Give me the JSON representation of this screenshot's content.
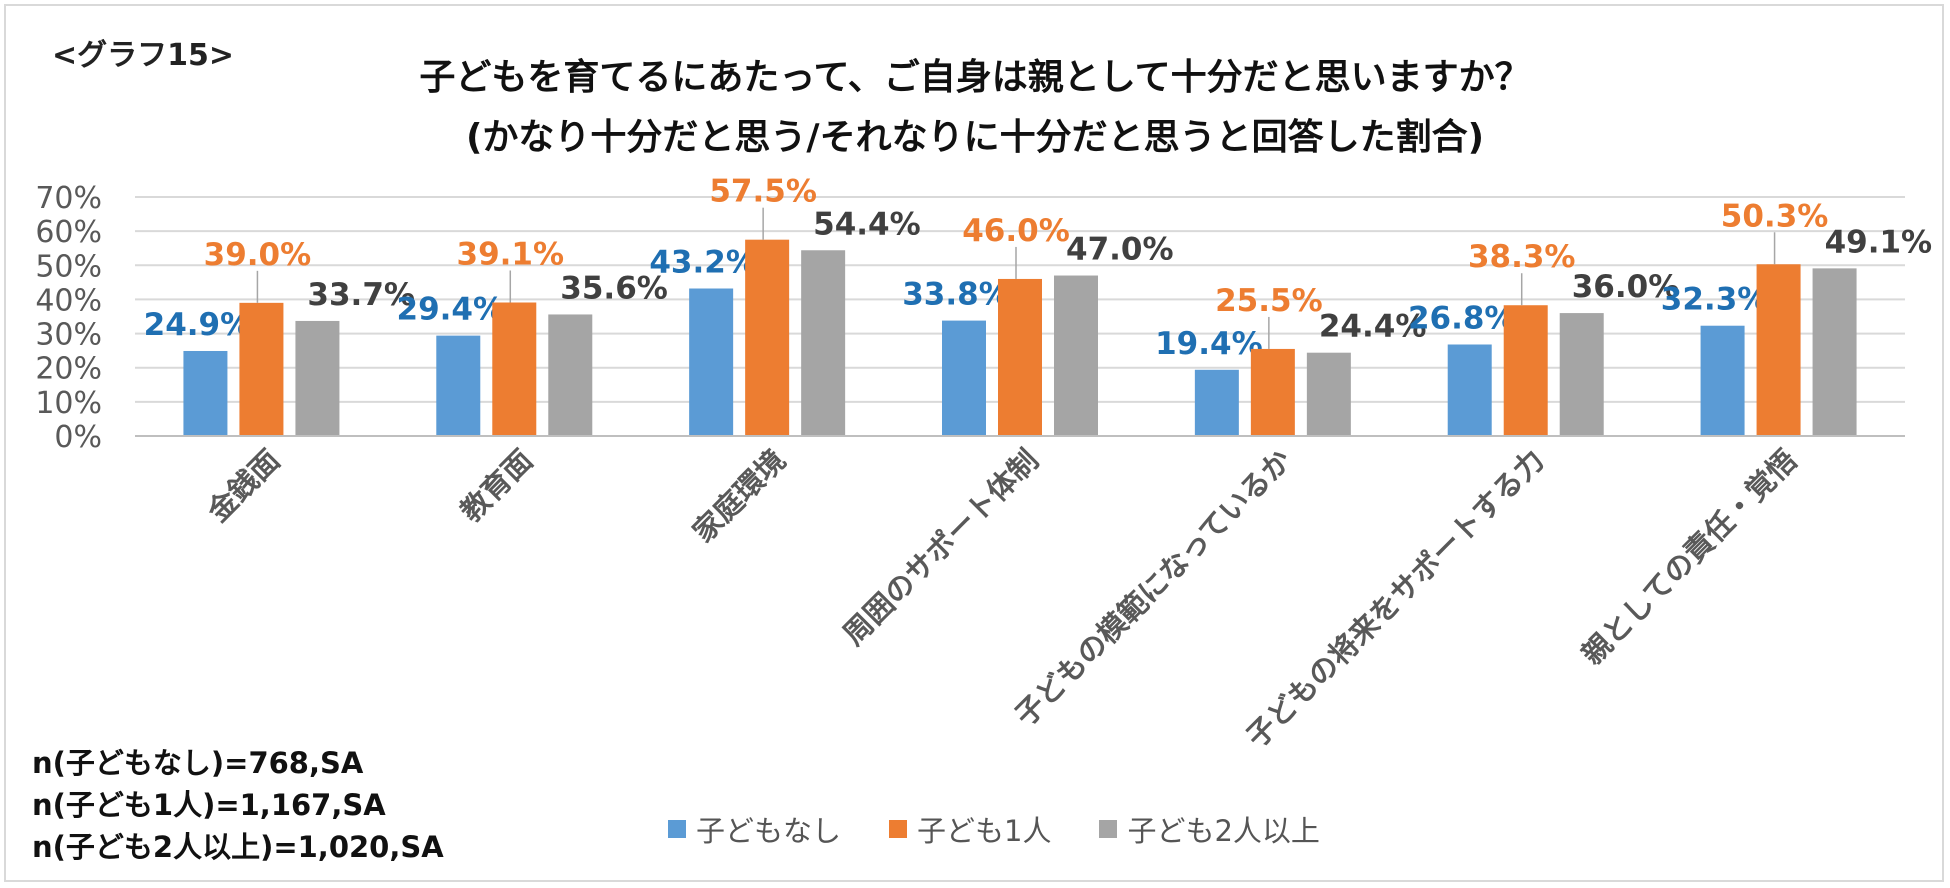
{
  "graph_tag": "<グラフ15>",
  "title_line1": "子どもを育てるにあたって、ご自身は親として十分だと思いますか？",
  "title_line2": "(かなり十分だと思う/それなりに十分だと思うと回答した割合)",
  "notes": [
    "n(子どもなし)=768,SA",
    "n(子ども1人)=1,167,SA",
    "n(子ども2人以上)=1,020,SA"
  ],
  "chart_data": {
    "type": "bar",
    "categories": [
      "金銭面",
      "教育面",
      "家庭環境",
      "周囲のサポート体制",
      "子どもの模範になっているか",
      "子どもの将来をサポートする力",
      "親としての責任・覚悟"
    ],
    "series": [
      {
        "name": "子どもなし",
        "color": "#5b9bd5",
        "label_color": "#1f6fb2",
        "values": [
          24.9,
          29.4,
          43.2,
          33.8,
          19.4,
          26.8,
          32.3
        ]
      },
      {
        "name": "子ども1人",
        "color": "#ed7d31",
        "label_color": "#ed7d31",
        "values": [
          39.0,
          39.1,
          57.5,
          46.0,
          25.5,
          38.3,
          50.3
        ]
      },
      {
        "name": "子ども2人以上",
        "color": "#a5a5a5",
        "label_color": "#404040",
        "values": [
          33.7,
          35.6,
          54.4,
          47.0,
          24.4,
          36.0,
          49.1
        ]
      }
    ],
    "value_labels": [
      [
        "24.9%",
        "29.4%",
        "43.2%",
        "33.8%",
        "19.4%",
        "26.8%",
        "32.3%"
      ],
      [
        "39.0%",
        "39.1%",
        "57.5%",
        "46.0%",
        "25.5%",
        "38.3%",
        "50.3%"
      ],
      [
        "33.7%",
        "35.6%",
        "54.4%",
        "47.0%",
        "24.4%",
        "36.0%",
        "49.1%"
      ]
    ],
    "ylim": [
      0,
      70
    ],
    "yticks": [
      "0%",
      "10%",
      "20%",
      "30%",
      "40%",
      "50%",
      "60%",
      "70%"
    ],
    "grid": true,
    "legend_position": "bottom"
  }
}
